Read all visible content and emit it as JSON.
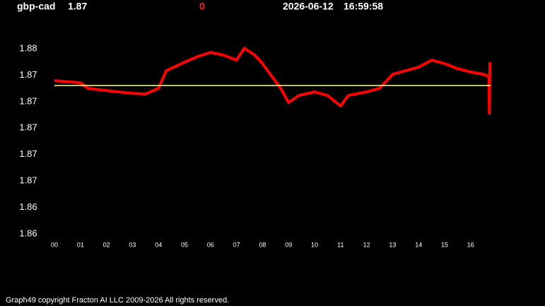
{
  "chart_data": {
    "type": "line",
    "symbol": "gbp-cad",
    "last": "1.87",
    "change": "0",
    "date": "2026-06-12",
    "time": "16:59:58",
    "footer": "Graph49 copyright Fracton AI LLC 2009-2026 All rights reserved.",
    "x": [
      0,
      1,
      1.3,
      2,
      3,
      3.5,
      4,
      4.3,
      5,
      5.5,
      6,
      6.5,
      7,
      7.3,
      7.7,
      8,
      8.3,
      8.7,
      9,
      9.4,
      10,
      10.5,
      11,
      11.3,
      12,
      12.5,
      13,
      14,
      14.5,
      15,
      15.5,
      16,
      16.5,
      16.7,
      16.72,
      16.74
    ],
    "series": [
      {
        "color": "#ff0000",
        "values": [
          1.87359,
          1.87343,
          1.873,
          1.87284,
          1.87263,
          1.87258,
          1.873,
          1.87434,
          1.87498,
          1.87541,
          1.87573,
          1.87552,
          1.87514,
          1.87605,
          1.87552,
          1.87488,
          1.87407,
          1.873,
          1.87194,
          1.87247,
          1.87274,
          1.87247,
          1.87167,
          1.87247,
          1.87274,
          1.873,
          1.87407,
          1.87461,
          1.87514,
          1.87488,
          1.8745,
          1.87424,
          1.87407,
          1.87391,
          1.87113,
          1.87498
        ]
      }
    ],
    "reference": {
      "value": 1.87322,
      "color": "#ffff99"
    },
    "xlim": [
      0,
      17
    ],
    "xticks": [
      {
        "value": 0,
        "label": "00"
      },
      {
        "value": 1,
        "label": "01"
      },
      {
        "value": 2,
        "label": "02"
      },
      {
        "value": 3,
        "label": "03"
      },
      {
        "value": 4,
        "label": "04"
      },
      {
        "value": 5,
        "label": "05"
      },
      {
        "value": 6,
        "label": "06"
      },
      {
        "value": 7,
        "label": "07"
      },
      {
        "value": 8,
        "label": "08"
      },
      {
        "value": 9,
        "label": "09"
      },
      {
        "value": 10,
        "label": "10"
      },
      {
        "value": 11,
        "label": "11"
      },
      {
        "value": 12,
        "label": "12"
      },
      {
        "value": 13,
        "label": "13"
      },
      {
        "value": 14,
        "label": "14"
      },
      {
        "value": 15,
        "label": "15"
      },
      {
        "value": 16,
        "label": "16"
      }
    ],
    "ylim": [
      1.862,
      1.876
    ],
    "yticks": [
      {
        "value": 1.876,
        "label": "1.88"
      },
      {
        "value": 1.874,
        "label": "1.87"
      },
      {
        "value": 1.872,
        "label": "1.87"
      },
      {
        "value": 1.87,
        "label": "1.87"
      },
      {
        "value": 1.868,
        "label": "1.87"
      },
      {
        "value": 1.866,
        "label": "1.87"
      },
      {
        "value": 1.864,
        "label": "1.86"
      },
      {
        "value": 1.862,
        "label": "1.86"
      }
    ]
  }
}
